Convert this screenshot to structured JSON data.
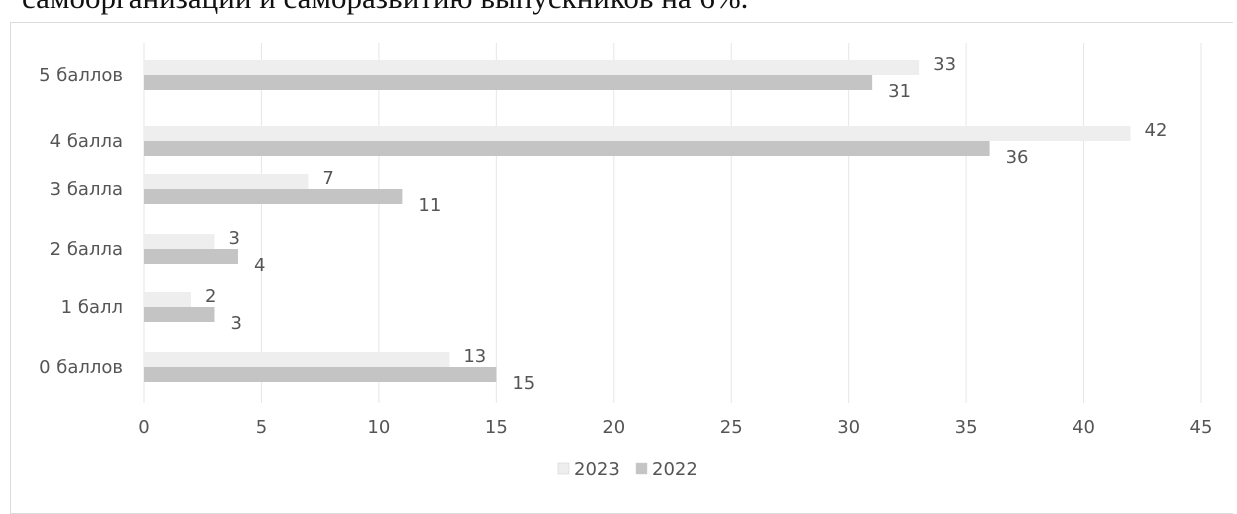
{
  "page_text": {
    "top_line": "самоорганизации и саморазвитию выпускников на 6%."
  },
  "colors": {
    "series_2023": "#eeeeee",
    "series_2022": "#c4c4c4",
    "grid": "#e6e6e6",
    "text": "#555555"
  },
  "chart_data": {
    "type": "bar",
    "orientation": "horizontal",
    "categories": [
      "5 баллов",
      "4 балла",
      "3 балла",
      "2 балла",
      "1 балл",
      "0 баллов"
    ],
    "series": [
      {
        "name": "2023",
        "values": [
          33,
          42,
          7,
          3,
          2,
          13
        ]
      },
      {
        "name": "2022",
        "values": [
          31,
          36,
          11,
          4,
          3,
          15
        ]
      }
    ],
    "xlim": [
      0,
      45
    ],
    "x_ticks": [
      "0",
      "5",
      "10",
      "15",
      "20",
      "25",
      "30",
      "35",
      "40",
      "45"
    ],
    "grid": "vertical",
    "legend_position": "bottom",
    "title": "",
    "xlabel": "",
    "ylabel": ""
  }
}
